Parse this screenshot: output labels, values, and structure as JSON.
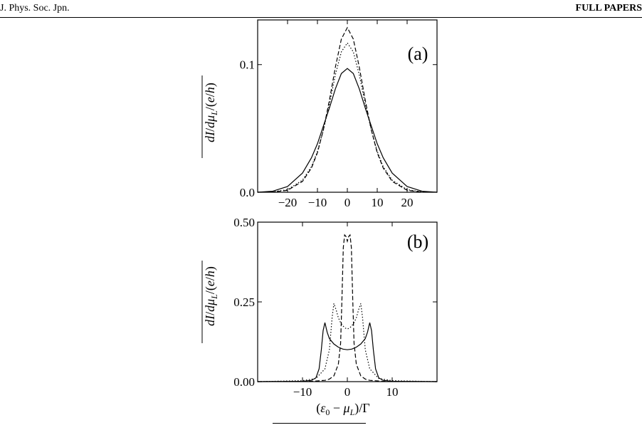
{
  "header": {
    "journal": "J. Phys. Soc. Jpn.",
    "section": "FULL PAPERS"
  },
  "chart_data": [
    {
      "type": "line",
      "panel_label": "(a)",
      "ylabel": "dI/dμL/(e/h)",
      "xlabel": "",
      "xlim": [
        -30,
        30
      ],
      "ylim": [
        0,
        0.135
      ],
      "xticks": [
        -20,
        -10,
        0,
        10,
        20
      ],
      "xtick_labels": [
        "−20",
        "−10",
        "0",
        "10",
        "20"
      ],
      "yticks": [
        0,
        0.1
      ],
      "ytick_labels": [
        "0.0",
        "0.1"
      ],
      "series": [
        {
          "style": "dashed",
          "x": [
            -30,
            -25,
            -20,
            -15,
            -12,
            -10,
            -8,
            -6,
            -4,
            -2,
            0,
            2,
            4,
            6,
            8,
            10,
            12,
            15,
            20,
            25,
            30
          ],
          "y": [
            0,
            0.0002,
            0.0015,
            0.0085,
            0.019,
            0.031,
            0.049,
            0.072,
            0.098,
            0.12,
            0.129,
            0.12,
            0.098,
            0.072,
            0.049,
            0.031,
            0.019,
            0.0085,
            0.0015,
            0.0002,
            0
          ]
        },
        {
          "style": "dotted",
          "x": [
            -30,
            -25,
            -20,
            -15,
            -12,
            -10,
            -8,
            -6,
            -4,
            -2,
            0,
            2,
            4,
            6,
            8,
            10,
            12,
            15,
            20,
            25,
            30
          ],
          "y": [
            0,
            0.0003,
            0.002,
            0.0095,
            0.02,
            0.032,
            0.049,
            0.069,
            0.092,
            0.11,
            0.117,
            0.11,
            0.092,
            0.069,
            0.049,
            0.032,
            0.02,
            0.0095,
            0.002,
            0.0003,
            0
          ]
        },
        {
          "style": "solid",
          "x": [
            -30,
            -25,
            -20,
            -15,
            -12,
            -10,
            -8,
            -6,
            -4,
            -2,
            0,
            2,
            4,
            6,
            8,
            10,
            12,
            15,
            20,
            25,
            30
          ],
          "y": [
            0,
            0.0008,
            0.0045,
            0.015,
            0.027,
            0.038,
            0.052,
            0.066,
            0.081,
            0.093,
            0.097,
            0.093,
            0.081,
            0.066,
            0.052,
            0.038,
            0.027,
            0.015,
            0.0045,
            0.0008,
            0
          ]
        }
      ]
    },
    {
      "type": "line",
      "panel_label": "(b)",
      "ylabel": "dI/dμL/(e/h)",
      "xlabel": "(ε0 − μL)/Γ",
      "xlim": [
        -20,
        20
      ],
      "ylim": [
        0,
        0.5
      ],
      "xticks": [
        -10,
        0,
        10
      ],
      "xtick_labels": [
        "−10",
        "0",
        "10"
      ],
      "yticks": [
        0,
        0.25,
        0.5
      ],
      "ytick_labels": [
        "0.00",
        "0.25",
        "0.50"
      ],
      "series": [
        {
          "style": "dashed",
          "x": [
            -20,
            -8,
            -5,
            -4,
            -3,
            -2,
            -1.5,
            -1.2,
            -0.9,
            -0.6,
            -0.3,
            0,
            0.3,
            0.6,
            0.9,
            1.2,
            1.5,
            2,
            3,
            4,
            5,
            8,
            20
          ],
          "y": [
            0,
            0.001,
            0.004,
            0.008,
            0.018,
            0.055,
            0.12,
            0.26,
            0.42,
            0.46,
            0.455,
            0.44,
            0.455,
            0.46,
            0.42,
            0.26,
            0.12,
            0.055,
            0.018,
            0.008,
            0.004,
            0.001,
            0
          ]
        },
        {
          "style": "dotted",
          "x": [
            -20,
            -10,
            -7,
            -5,
            -4,
            -3.4,
            -3,
            -2.5,
            -2,
            -1.5,
            -1,
            -0.5,
            0,
            0.5,
            1,
            1.5,
            2,
            2.5,
            3,
            3.4,
            4,
            5,
            7,
            10,
            20
          ],
          "y": [
            0,
            0.003,
            0.01,
            0.04,
            0.1,
            0.2,
            0.245,
            0.225,
            0.2,
            0.185,
            0.175,
            0.168,
            0.165,
            0.168,
            0.175,
            0.185,
            0.2,
            0.225,
            0.245,
            0.2,
            0.1,
            0.04,
            0.01,
            0.003,
            0
          ]
        },
        {
          "style": "solid",
          "x": [
            -20,
            -10,
            -8,
            -7,
            -6.3,
            -5.8,
            -5.4,
            -5,
            -4.5,
            -4,
            -3,
            -2,
            -1,
            0,
            1,
            2,
            3,
            4,
            4.5,
            5,
            5.4,
            5.8,
            6.3,
            7,
            8,
            10,
            20
          ],
          "y": [
            0,
            0.001,
            0.004,
            0.012,
            0.04,
            0.1,
            0.16,
            0.185,
            0.155,
            0.135,
            0.118,
            0.108,
            0.102,
            0.1,
            0.102,
            0.108,
            0.118,
            0.135,
            0.155,
            0.185,
            0.16,
            0.1,
            0.04,
            0.012,
            0.004,
            0.001,
            0
          ]
        }
      ]
    }
  ]
}
